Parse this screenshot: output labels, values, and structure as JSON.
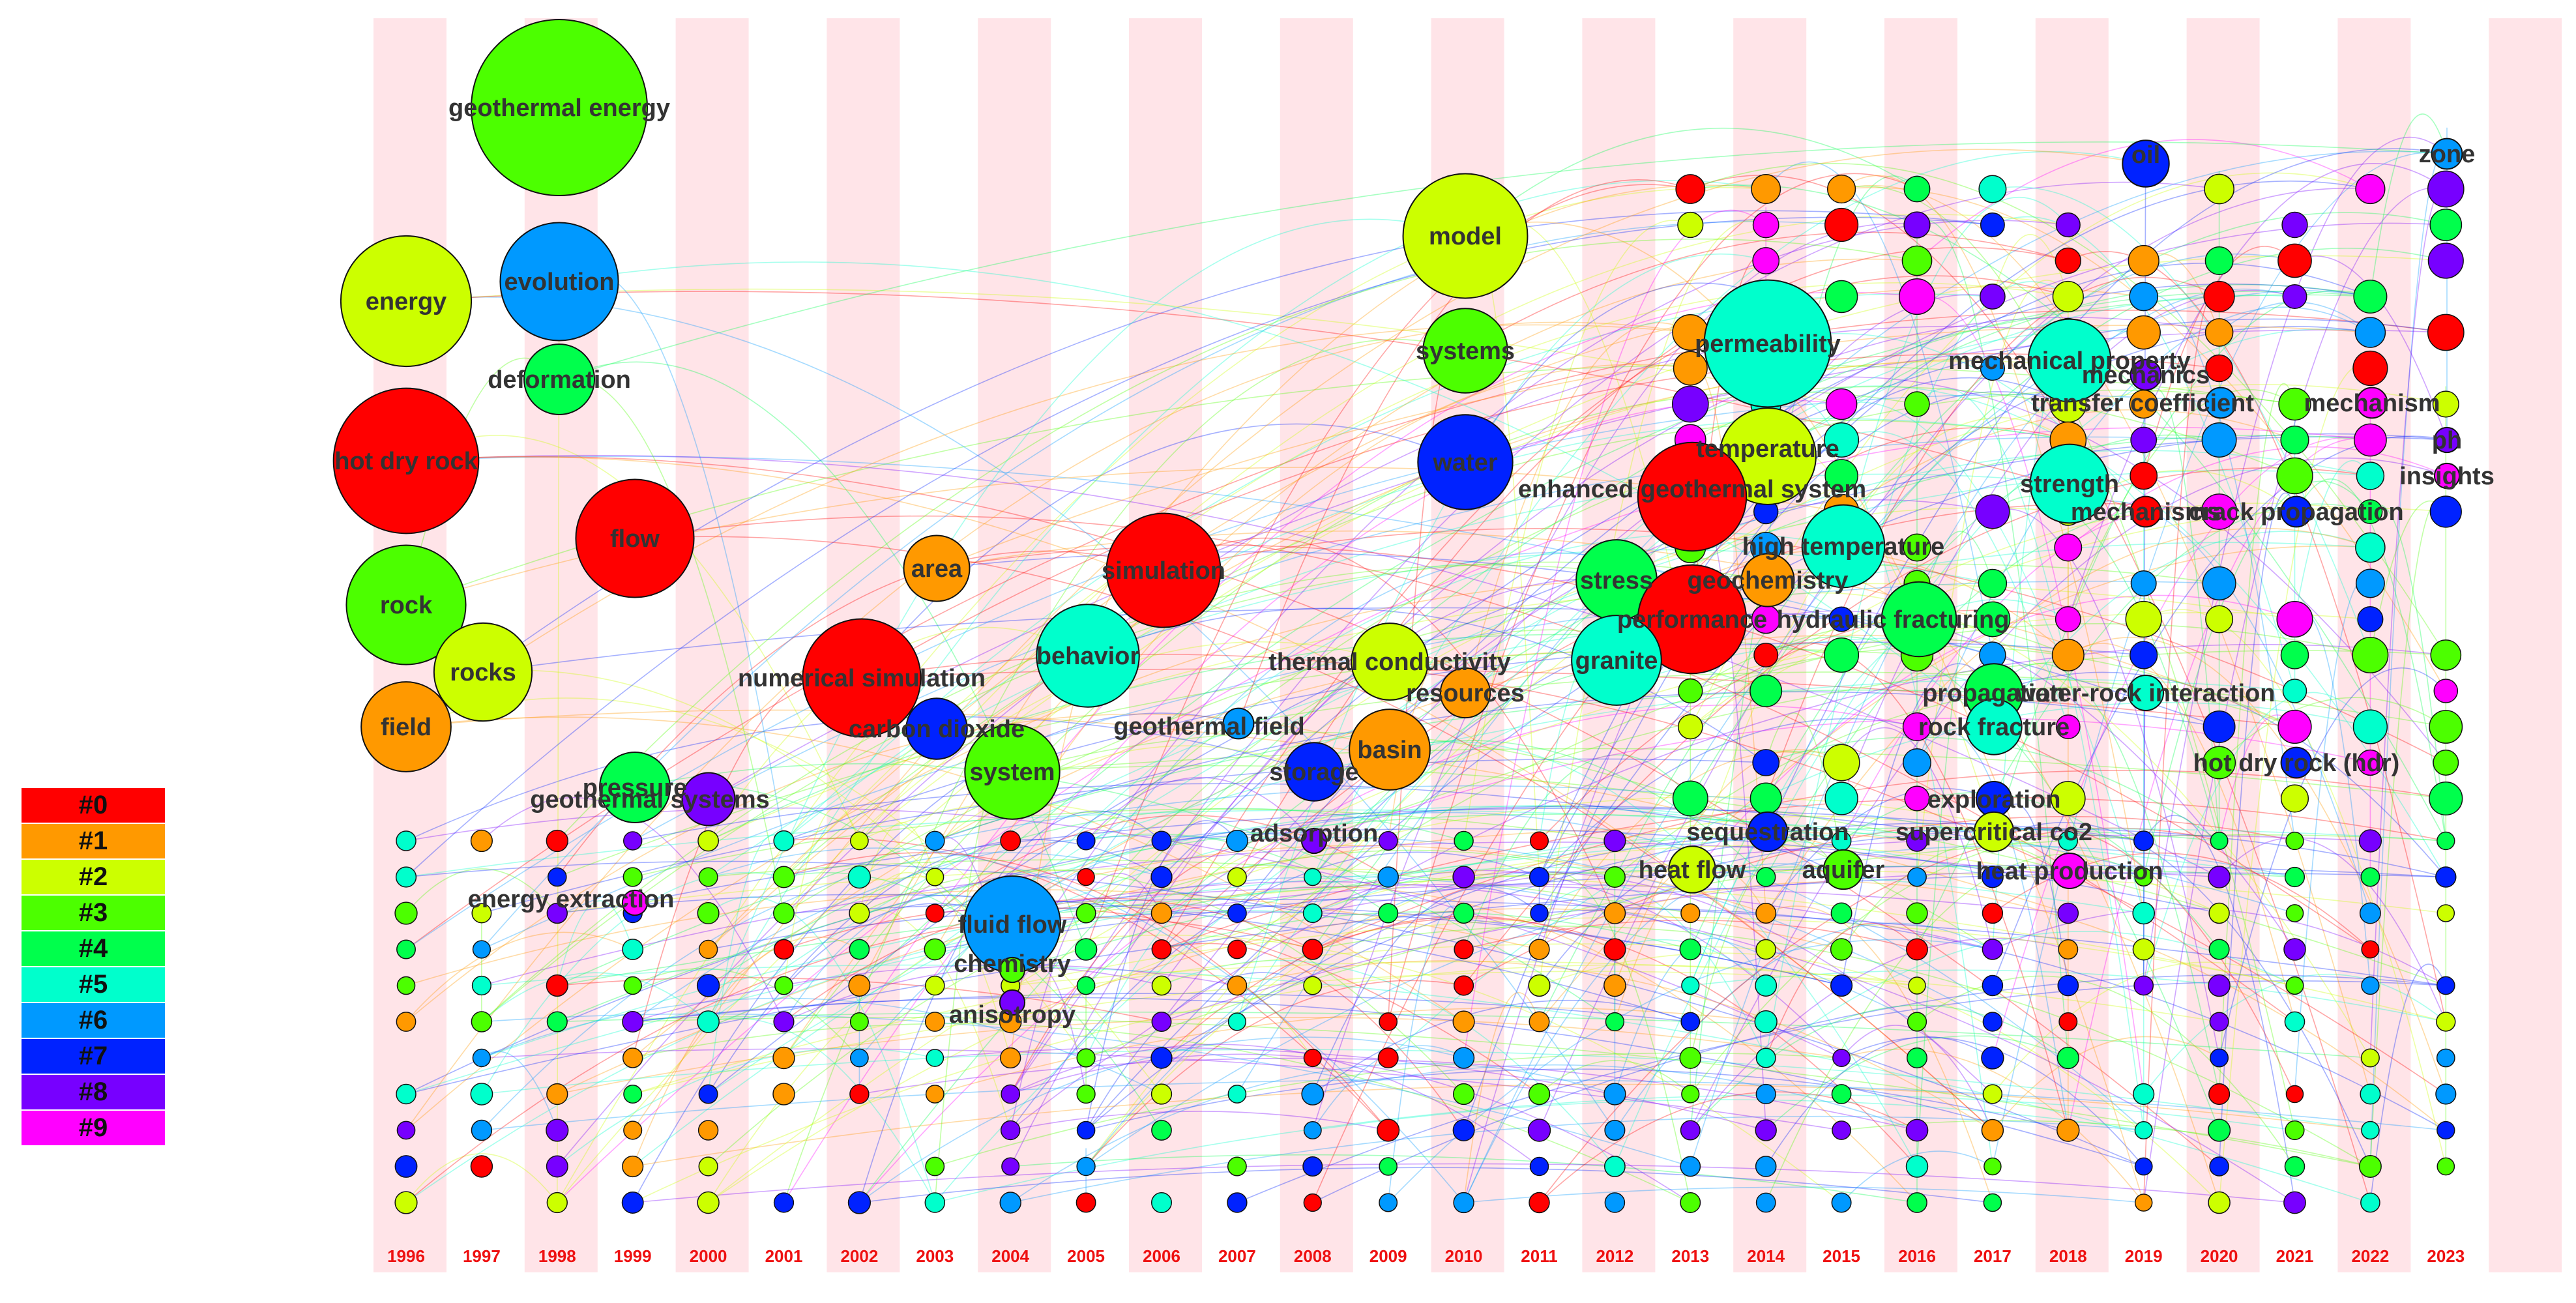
{
  "chart_data": {
    "type": "timezone-network",
    "title": "",
    "years": [
      "1996",
      "1997",
      "1998",
      "1999",
      "2000",
      "2001",
      "2002",
      "2003",
      "2004",
      "2005",
      "2006",
      "2007",
      "2008",
      "2009",
      "2010",
      "2011",
      "2012",
      "2013",
      "2014",
      "2015",
      "2016",
      "2017",
      "2018",
      "2019",
      "2020",
      "2021",
      "2022",
      "2023"
    ],
    "cluster_colors": [
      "#ff0000",
      "#ff9900",
      "#ccff00",
      "#4cff00",
      "#00ff4c",
      "#00ffcc",
      "#0099ff",
      "#0022ff",
      "#7700ff",
      "#ff00ff"
    ],
    "legend": [
      "#0",
      "#1",
      "#2",
      "#3",
      "#4",
      "#5",
      "#6",
      "#7",
      "#8",
      "#9"
    ],
    "keywords": [
      {
        "label": "geothermal energy",
        "year": "1998",
        "cluster": 3,
        "count": 100
      },
      {
        "label": "energy",
        "year": "1996",
        "cluster": 2,
        "count": 55
      },
      {
        "label": "hot dry rock",
        "year": "1996",
        "cluster": 0,
        "count": 68
      },
      {
        "label": "rock",
        "year": "1996",
        "cluster": 3,
        "count": 46
      },
      {
        "label": "field",
        "year": "1996",
        "cluster": 1,
        "count": 26
      },
      {
        "label": "evolution",
        "year": "1998",
        "cluster": 6,
        "count": 45
      },
      {
        "label": "deformation",
        "year": "1998",
        "cluster": 4,
        "count": 16
      },
      {
        "label": "flow",
        "year": "1999",
        "cluster": 0,
        "count": 45
      },
      {
        "label": "rocks",
        "year": "1997",
        "cluster": 2,
        "count": 31
      },
      {
        "label": "pressure",
        "year": "1999",
        "cluster": 4,
        "count": 16
      },
      {
        "label": "geothermal systems",
        "year": "2000",
        "cluster": 8,
        "count": 9
      },
      {
        "label": "energy extraction",
        "year": "1999",
        "cluster": 9,
        "count": 2
      },
      {
        "label": "numerical simulation",
        "year": "2002",
        "cluster": 0,
        "count": 45
      },
      {
        "label": "area",
        "year": "2003",
        "cluster": 1,
        "count": 14
      },
      {
        "label": "carbon dioxide",
        "year": "2003",
        "cluster": 7,
        "count": 12
      },
      {
        "label": "system",
        "year": "2004",
        "cluster": 3,
        "count": 29
      },
      {
        "label": "fluid flow",
        "year": "2004",
        "cluster": 6,
        "count": 30
      },
      {
        "label": "chemistry",
        "year": "2004",
        "cluster": 3,
        "count": 2
      },
      {
        "label": "anisotropy",
        "year": "2004",
        "cluster": 8,
        "count": 2
      },
      {
        "label": "behavior",
        "year": "2005",
        "cluster": 5,
        "count": 34
      },
      {
        "label": "simulation",
        "year": "2006",
        "cluster": 0,
        "count": 42
      },
      {
        "label": "geothermal field",
        "year": "2007",
        "cluster": 6,
        "count": 3
      },
      {
        "label": "storage",
        "year": "2008",
        "cluster": 7,
        "count": 11
      },
      {
        "label": "adsorption",
        "year": "2008",
        "cluster": 8,
        "count": 2
      },
      {
        "label": "model",
        "year": "2010",
        "cluster": 2,
        "count": 50
      },
      {
        "label": "systems",
        "year": "2010",
        "cluster": 3,
        "count": 23
      },
      {
        "label": "water",
        "year": "2010",
        "cluster": 7,
        "count": 29
      },
      {
        "label": "thermal conductivity",
        "year": "2009",
        "cluster": 2,
        "count": 19
      },
      {
        "label": "resources",
        "year": "2010",
        "cluster": 1,
        "count": 8
      },
      {
        "label": "basin",
        "year": "2009",
        "cluster": 1,
        "count": 21
      },
      {
        "label": "permeability",
        "year": "2014",
        "cluster": 5,
        "count": 52
      },
      {
        "label": "temperature",
        "year": "2014",
        "cluster": 2,
        "count": 30
      },
      {
        "label": "enhanced geothermal system",
        "year": "2013",
        "cluster": 0,
        "count": 38
      },
      {
        "label": "high temperature",
        "year": "2015",
        "cluster": 5,
        "count": 22
      },
      {
        "label": "stress",
        "year": "2012",
        "cluster": 4,
        "count": 21
      },
      {
        "label": "geochemistry",
        "year": "2014",
        "cluster": 1,
        "count": 9
      },
      {
        "label": "performance",
        "year": "2013",
        "cluster": 0,
        "count": 38
      },
      {
        "label": "hydraulic fracturing",
        "year": "2015",
        "cluster": 4,
        "count": 18
      },
      {
        "label": "granite",
        "year": "2012",
        "cluster": 5,
        "count": 26
      },
      {
        "label": "sequestration",
        "year": "2014",
        "cluster": 7,
        "count": 5
      },
      {
        "label": "heat flow",
        "year": "2013",
        "cluster": 2,
        "count": 7
      },
      {
        "label": "aquifer",
        "year": "2015",
        "cluster": 3,
        "count": 5
      },
      {
        "label": "exploration",
        "year": "2017",
        "cluster": 7,
        "count": 4
      },
      {
        "label": "supercritical co2",
        "year": "2017",
        "cluster": 2,
        "count": 5
      },
      {
        "label": "heat production",
        "year": "2018",
        "cluster": 9,
        "count": 4
      },
      {
        "label": "mechanical property",
        "year": "2018",
        "cluster": 5,
        "count": 22
      },
      {
        "label": "mechanics",
        "year": "2019",
        "cluster": 8,
        "count": 3
      },
      {
        "label": "transfer coefficient",
        "year": "2020",
        "cluster": 6,
        "count": 3
      },
      {
        "label": "strength",
        "year": "2018",
        "cluster": 5,
        "count": 20
      },
      {
        "label": "mechanisms",
        "year": "2019",
        "cluster": 0,
        "count": 3
      },
      {
        "label": "propagation",
        "year": "2017",
        "cluster": 4,
        "count": 11
      },
      {
        "label": "water-rock interaction",
        "year": "2019",
        "cluster": 5,
        "count": 4
      },
      {
        "label": "rock fracture",
        "year": "2017",
        "cluster": 5,
        "count": 10
      },
      {
        "label": "oil",
        "year": "2019",
        "cluster": 7,
        "count": 7
      },
      {
        "label": "zone",
        "year": "2023",
        "cluster": 6,
        "count": 3
      },
      {
        "label": "mechanism",
        "year": "2022",
        "cluster": 9,
        "count": 3
      },
      {
        "label": "ph",
        "year": "2023",
        "cluster": 8,
        "count": 2
      },
      {
        "label": "insights",
        "year": "2023",
        "cluster": 9,
        "count": 2
      },
      {
        "label": "crack propagation",
        "year": "2021",
        "cluster": 7,
        "count": 3
      },
      {
        "label": "hot dry rock (hdr)",
        "year": "2021",
        "cluster": 7,
        "count": 3
      }
    ]
  }
}
